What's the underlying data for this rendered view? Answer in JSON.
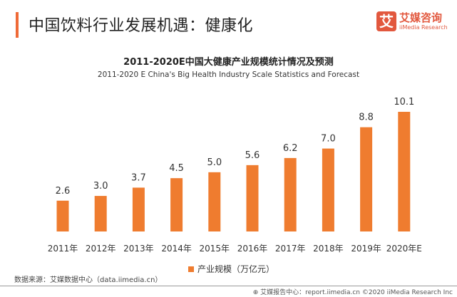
{
  "header": {
    "title": "中国饮料行业发展机遇：健康化",
    "logo": {
      "mark": "艾",
      "cn": "艾媒咨询",
      "en": "iiMedia Research"
    }
  },
  "chart_data": {
    "type": "bar",
    "title": "2011-2020E中国大健康产业规模统计情况及预测",
    "subtitle": "2011-2020 E China's Big Health Industry Scale Statistics and Forecast",
    "categories": [
      "2011年",
      "2012年",
      "2013年",
      "2014年",
      "2015年",
      "2016年",
      "2017年",
      "2018年",
      "2019年",
      "2020年E"
    ],
    "series": [
      {
        "name": "产业规模（万亿元）",
        "values": [
          2.6,
          3.0,
          3.7,
          4.5,
          5.0,
          5.6,
          6.2,
          7.0,
          8.8,
          10.1
        ],
        "color": "#ef7c2f"
      }
    ],
    "ylim": [
      0,
      10.1
    ],
    "grid": false,
    "legend": "bottom",
    "data_labels": true
  },
  "source": "数据来源：艾媒数据中心（data.iimedia.cn）",
  "footer": "⊕ 艾媒报告中心：report.iimedia.cn ©2020 iiMedia Research Inc"
}
